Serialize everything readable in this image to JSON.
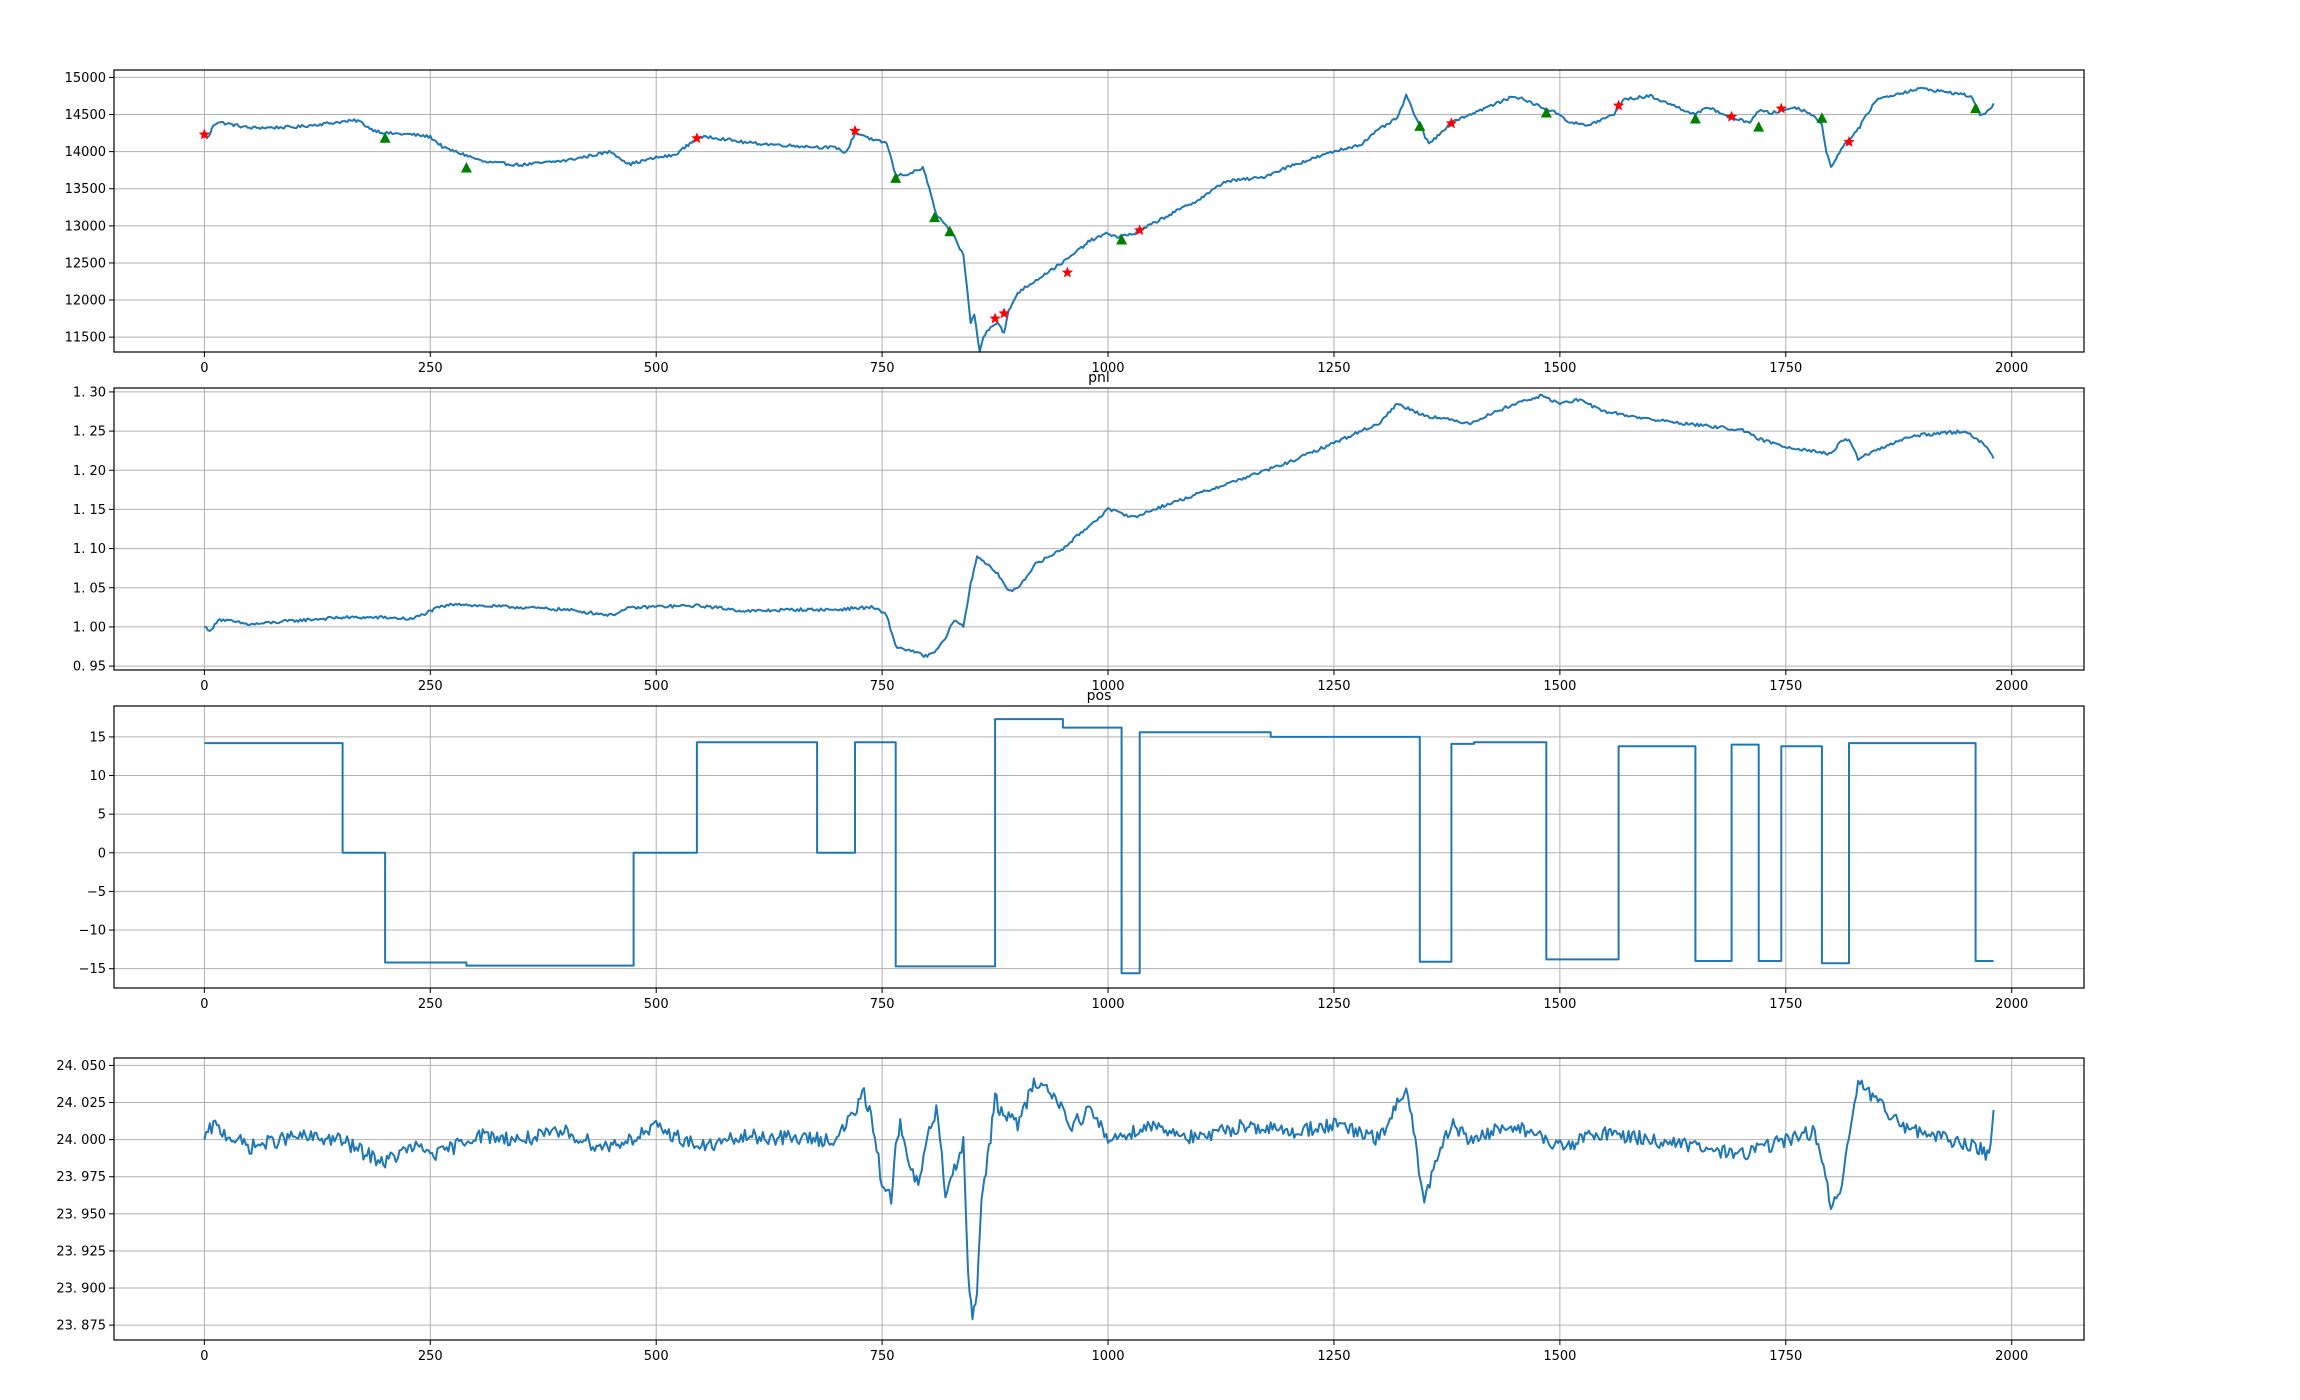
{
  "figure": {
    "line_color": "#1f77b4",
    "grid_color": "#b0b0b0",
    "buy_marker_color": "#008000",
    "sell_marker_color": "#ff0000"
  },
  "chart_data": [
    {
      "type": "line",
      "title": "",
      "xlim": [
        -100,
        2080
      ],
      "ylim": [
        11300,
        15100
      ],
      "x_ticks": [
        0,
        250,
        500,
        750,
        1000,
        1250,
        1500,
        1750,
        2000
      ],
      "y_ticks": [
        11500,
        12000,
        12500,
        13000,
        13500,
        14000,
        14500,
        15000
      ],
      "x_tick_labels": [
        "0",
        "250",
        "500",
        "750",
        "1000",
        "1250",
        "1500",
        "1750",
        "2000"
      ],
      "y_tick_labels": [
        "11500",
        "12000",
        "12500",
        "13000",
        "13500",
        "14000",
        "14500",
        "15000"
      ],
      "grid": true,
      "noise": 20,
      "series": [
        {
          "x": [
            0,
            5,
            10,
            15,
            50,
            100,
            150,
            170,
            185,
            200,
            230,
            250,
            265,
            290,
            310,
            350,
            400,
            450,
            470,
            500,
            520,
            545,
            560,
            600,
            650,
            700,
            710,
            720,
            730,
            740,
            755,
            765,
            780,
            795,
            800,
            810,
            820,
            830,
            840,
            848,
            852,
            858,
            862,
            870,
            878,
            885,
            890,
            900,
            930,
            955,
            980,
            1000,
            1010,
            1030,
            1060,
            1100,
            1130,
            1170,
            1200,
            1250,
            1280,
            1300,
            1320,
            1330,
            1345,
            1355,
            1380,
            1410,
            1450,
            1470,
            1500,
            1510,
            1530,
            1560,
            1570,
            1600,
            1620,
            1650,
            1665,
            1690,
            1710,
            1720,
            1735,
            1760,
            1780,
            1790,
            1795,
            1800,
            1815,
            1830,
            1850,
            1880,
            1900,
            1930,
            1955,
            1965,
            1975,
            1980
          ],
          "y": [
            14220,
            14200,
            14360,
            14400,
            14320,
            14330,
            14400,
            14420,
            14300,
            14250,
            14230,
            14200,
            14050,
            13950,
            13860,
            13820,
            13880,
            14000,
            13830,
            13920,
            13950,
            14180,
            14200,
            14120,
            14080,
            14050,
            13980,
            14250,
            14220,
            14150,
            14120,
            13680,
            13700,
            13780,
            13600,
            13150,
            13000,
            12850,
            12600,
            11700,
            11800,
            11300,
            11500,
            11650,
            11700,
            11550,
            11850,
            12100,
            12350,
            12550,
            12800,
            12900,
            12850,
            12900,
            13100,
            13350,
            13600,
            13650,
            13800,
            14000,
            14100,
            14300,
            14450,
            14750,
            14350,
            14100,
            14400,
            14550,
            14750,
            14650,
            14500,
            14400,
            14350,
            14500,
            14700,
            14750,
            14650,
            14500,
            14600,
            14450,
            14400,
            14550,
            14520,
            14600,
            14500,
            14350,
            14000,
            13800,
            14100,
            14300,
            14700,
            14800,
            14850,
            14800,
            14750,
            14500,
            14550,
            14650
          ]
        }
      ],
      "buy_signals": [
        {
          "x": 200,
          "y": 14180
        },
        {
          "x": 290,
          "y": 13780
        },
        {
          "x": 765,
          "y": 13640
        },
        {
          "x": 808,
          "y": 13110
        },
        {
          "x": 825,
          "y": 12920
        },
        {
          "x": 1015,
          "y": 12810
        },
        {
          "x": 1345,
          "y": 14340
        },
        {
          "x": 1485,
          "y": 14520
        },
        {
          "x": 1650,
          "y": 14440
        },
        {
          "x": 1720,
          "y": 14330
        },
        {
          "x": 1790,
          "y": 14450
        },
        {
          "x": 1960,
          "y": 14580
        }
      ],
      "sell_signals": [
        {
          "x": 0,
          "y": 14230
        },
        {
          "x": 545,
          "y": 14180
        },
        {
          "x": 720,
          "y": 14280
        },
        {
          "x": 875,
          "y": 11750
        },
        {
          "x": 885,
          "y": 11820
        },
        {
          "x": 955,
          "y": 12370
        },
        {
          "x": 1035,
          "y": 12940
        },
        {
          "x": 1380,
          "y": 14380
        },
        {
          "x": 1565,
          "y": 14620
        },
        {
          "x": 1690,
          "y": 14470
        },
        {
          "x": 1745,
          "y": 14580
        },
        {
          "x": 1820,
          "y": 14130
        }
      ]
    },
    {
      "type": "line",
      "title": "pnl",
      "xlim": [
        -100,
        2080
      ],
      "ylim": [
        0.945,
        1.305
      ],
      "x_ticks": [
        0,
        250,
        500,
        750,
        1000,
        1250,
        1500,
        1750,
        2000
      ],
      "y_ticks": [
        0.95,
        1.0,
        1.05,
        1.1,
        1.15,
        1.2,
        1.25,
        1.3
      ],
      "x_tick_labels": [
        "0",
        "250",
        "500",
        "750",
        "1000",
        "1250",
        "1500",
        "1750",
        "2000"
      ],
      "y_tick_labels": [
        "0. 95",
        "1. 00",
        "1. 05",
        "1. 10",
        "1. 15",
        "1. 20",
        "1. 25",
        "1. 30"
      ],
      "grid": true,
      "noise": 0.002,
      "series": [
        {
          "x": [
            0,
            8,
            15,
            50,
            100,
            150,
            200,
            230,
            260,
            280,
            300,
            350,
            400,
            450,
            470,
            500,
            550,
            600,
            650,
            700,
            720,
            740,
            755,
            765,
            780,
            800,
            810,
            820,
            830,
            840,
            848,
            855,
            862,
            870,
            880,
            890,
            900,
            920,
            950,
            980,
            1000,
            1030,
            1050,
            1100,
            1150,
            1200,
            1250,
            1300,
            1320,
            1350,
            1400,
            1450,
            1480,
            1500,
            1520,
            1550,
            1600,
            1650,
            1700,
            1720,
            1750,
            1780,
            1800,
            1810,
            1820,
            1830,
            1850,
            1880,
            1900,
            1950,
            1970,
            1980
          ],
          "y": [
            1.0,
            0.995,
            1.01,
            1.003,
            1.008,
            1.012,
            1.012,
            1.01,
            1.025,
            1.03,
            1.027,
            1.025,
            1.022,
            1.015,
            1.024,
            1.026,
            1.027,
            1.02,
            1.022,
            1.022,
            1.024,
            1.025,
            1.015,
            0.975,
            0.97,
            0.962,
            0.97,
            0.985,
            1.01,
            1.0,
            1.055,
            1.09,
            1.085,
            1.075,
            1.065,
            1.045,
            1.05,
            1.08,
            1.1,
            1.13,
            1.15,
            1.14,
            1.15,
            1.17,
            1.19,
            1.21,
            1.235,
            1.26,
            1.285,
            1.27,
            1.26,
            1.285,
            1.295,
            1.285,
            1.29,
            1.275,
            1.265,
            1.258,
            1.252,
            1.24,
            1.23,
            1.225,
            1.22,
            1.235,
            1.24,
            1.215,
            1.225,
            1.24,
            1.245,
            1.25,
            1.232,
            1.215
          ]
        }
      ]
    },
    {
      "type": "line",
      "title": "pos",
      "xlim": [
        -100,
        2080
      ],
      "ylim": [
        -17.5,
        19.0
      ],
      "x_ticks": [
        0,
        250,
        500,
        750,
        1000,
        1250,
        1500,
        1750,
        2000
      ],
      "y_ticks": [
        -15,
        -10,
        -5,
        0,
        5,
        10,
        15
      ],
      "x_tick_labels": [
        "0",
        "250",
        "500",
        "750",
        "1000",
        "1250",
        "1500",
        "1750",
        "2000"
      ],
      "y_tick_labels": [
        "−15",
        "−10",
        "−5",
        "0",
        "5",
        "10",
        "15"
      ],
      "grid": true,
      "step": true,
      "series": [
        {
          "x": [
            0,
            153,
            200,
            290,
            475,
            545,
            678,
            720,
            765,
            875,
            950,
            1015,
            1035,
            1180,
            1345,
            1380,
            1405,
            1485,
            1565,
            1650,
            1690,
            1720,
            1745,
            1790,
            1820,
            1960,
            1980
          ],
          "y": [
            14.2,
            0,
            -14.2,
            -14.6,
            0,
            14.3,
            0,
            14.3,
            -14.7,
            17.3,
            16.2,
            -15.6,
            15.6,
            15.0,
            -14.1,
            14.1,
            14.3,
            -13.8,
            13.8,
            -14.0,
            14.0,
            -14.0,
            13.8,
            -14.3,
            14.2,
            -14.0,
            -14.0
          ]
        }
      ]
    },
    {
      "type": "line",
      "title": "",
      "xlim": [
        -100,
        2080
      ],
      "ylim": [
        23.865,
        24.055
      ],
      "x_ticks": [
        0,
        250,
        500,
        750,
        1000,
        1250,
        1500,
        1750,
        2000
      ],
      "y_ticks": [
        23.875,
        23.9,
        23.925,
        23.95,
        23.975,
        24.0,
        24.025,
        24.05
      ],
      "x_tick_labels": [
        "0",
        "250",
        "500",
        "750",
        "1000",
        "1250",
        "1500",
        "1750",
        "2000"
      ],
      "y_tick_labels": [
        "23. 875",
        "23. 900",
        "23. 925",
        "23. 950",
        "23. 975",
        "24. 000",
        "24. 025",
        "24. 050"
      ],
      "grid": true,
      "noise": 0.005,
      "series": [
        {
          "x": [
            0,
            10,
            20,
            50,
            100,
            150,
            180,
            200,
            230,
            260,
            300,
            350,
            400,
            440,
            470,
            500,
            550,
            600,
            700,
            730,
            740,
            750,
            760,
            765,
            770,
            780,
            790,
            800,
            810,
            820,
            830,
            840,
            845,
            850,
            855,
            860,
            865,
            870,
            875,
            880,
            900,
            920,
            940,
            960,
            980,
            1000,
            1050,
            1100,
            1150,
            1200,
            1250,
            1300,
            1330,
            1340,
            1350,
            1360,
            1380,
            1400,
            1450,
            1500,
            1550,
            1600,
            1650,
            1700,
            1750,
            1780,
            1790,
            1800,
            1810,
            1820,
            1830,
            1850,
            1880,
            1900,
            1930,
            1960,
            1975,
            1980
          ],
          "y": [
            24.0,
            24.01,
            24.005,
            23.995,
            24.002,
            24.0,
            23.99,
            23.985,
            23.995,
            23.99,
            24.003,
            24.0,
            24.005,
            23.995,
            24.0,
            24.008,
            23.995,
            24.002,
            24.0,
            24.03,
            24.01,
            23.97,
            23.96,
            24.0,
            24.01,
            23.98,
            23.97,
            24.0,
            24.02,
            23.965,
            23.98,
            24.0,
            23.915,
            23.875,
            23.9,
            23.96,
            23.98,
            24.0,
            24.03,
            24.02,
            24.01,
            24.04,
            24.03,
            24.01,
            24.02,
            24.0,
            24.01,
            24.0,
            24.01,
            24.005,
            24.01,
            24.0,
            24.035,
            24.0,
            23.955,
            23.98,
            24.01,
            24.0,
            24.01,
            23.995,
            24.005,
            24.0,
            23.995,
            23.99,
            24.0,
            24.005,
            23.99,
            23.955,
            23.96,
            24.0,
            24.04,
            24.025,
            24.01,
            24.005,
            24.0,
            23.995,
            23.99,
            24.02
          ]
        }
      ]
    }
  ]
}
